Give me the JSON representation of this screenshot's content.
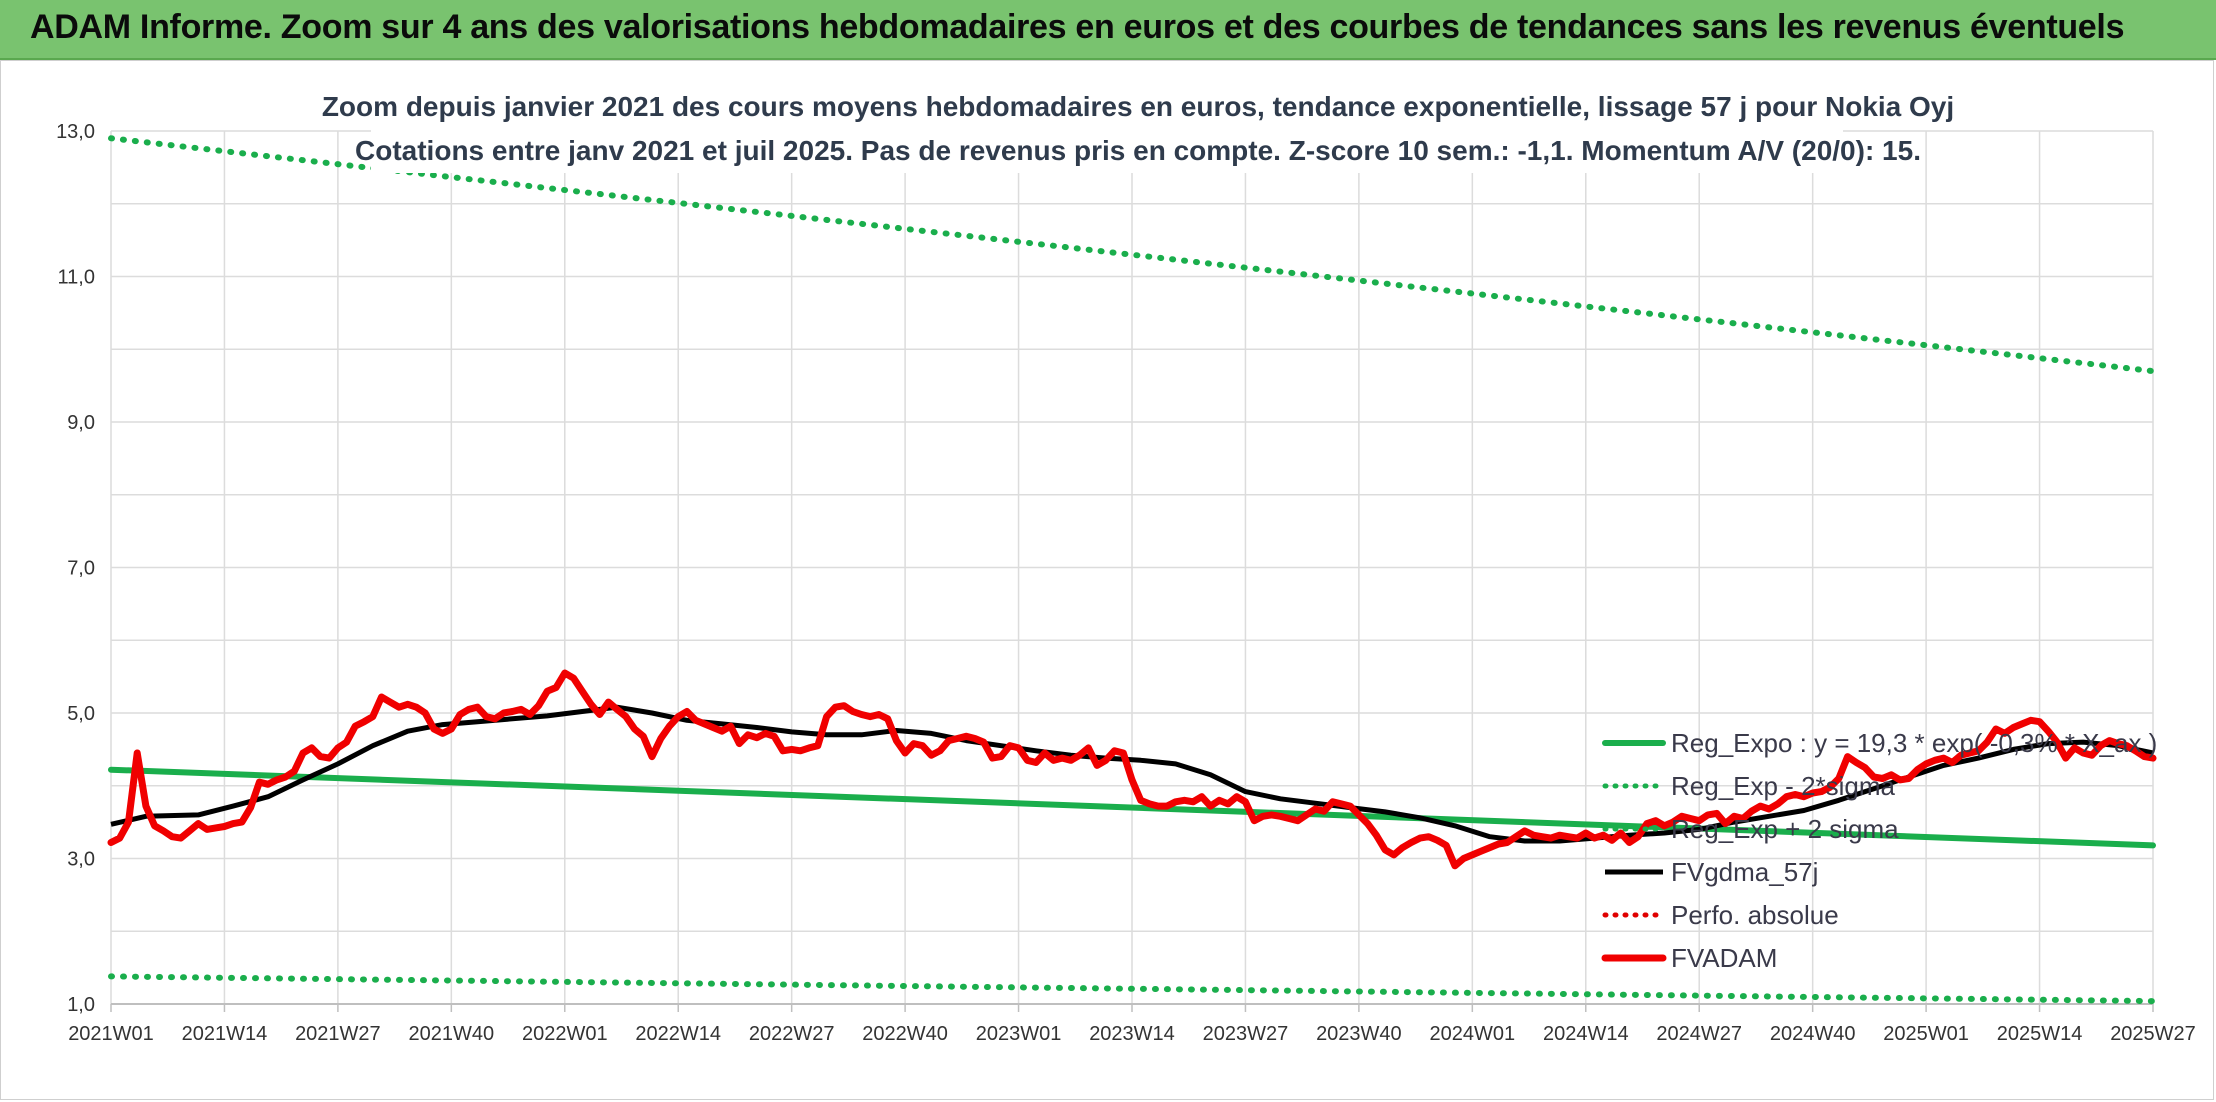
{
  "banner": {
    "title": "ADAM Informe. Zoom sur 4 ans des valorisations hebdomadaires en euros et des courbes de tendances sans les revenus éventuels"
  },
  "chart_data": {
    "type": "line",
    "title": "Zoom depuis janvier 2021 des cours moyens hebdomadaires en euros, tendance exponentielle, lissage 57 j pour Nokia Oyj",
    "subtitle": "Cotations entre janv 2021 et juil 2025. Pas de revenus pris en compte. Z-score 10 sem.: -1,1. Momentum A/V (20/0): 15.",
    "xlabel": "",
    "ylabel": "",
    "ylim": [
      1,
      13
    ],
    "y_ticks": [
      "1,0",
      "3,0",
      "5,0",
      "7,0",
      "9,0",
      "11,0",
      "13,0"
    ],
    "x_ticks": [
      "2021W01",
      "2021W14",
      "2021W27",
      "2021W40",
      "2022W01",
      "2022W14",
      "2022W27",
      "2022W40",
      "2023W01",
      "2023W14",
      "2023W27",
      "2023W40",
      "2024W01",
      "2024W14",
      "2024W27",
      "2024W40",
      "2025W01",
      "2025W14",
      "2025W27"
    ],
    "x_unit": "week index from 2021W01",
    "grid": true,
    "legend_position": "bottom-right, inside plot",
    "series": [
      {
        "name": "Reg_Expo : y = 19,3 * exp( -0,3% * X_ax )",
        "style": "solid",
        "color": "#1aae4c",
        "x": [
          0,
          234
        ],
        "y": [
          4.22,
          3.18
        ]
      },
      {
        "name": "Reg_Exp - 2*sigma",
        "style": "dotted",
        "color": "#1aae4c",
        "x": [
          0,
          234
        ],
        "y": [
          1.38,
          1.04
        ]
      },
      {
        "name": "Reg_Exp + 2 sigma",
        "style": "dotted",
        "color": "#1aae4c",
        "x": [
          0,
          234
        ],
        "y": [
          12.9,
          9.7
        ]
      },
      {
        "name": "FVgdma_57j",
        "style": "solid",
        "color": "#000000",
        "x": [
          0,
          4,
          10,
          14,
          18,
          22,
          26,
          30,
          34,
          38,
          42,
          46,
          50,
          54,
          58,
          62,
          66,
          70,
          74,
          78,
          82,
          86,
          90,
          94,
          98,
          102,
          106,
          110,
          114,
          118,
          122,
          126,
          130,
          134,
          138,
          142,
          146,
          150,
          154,
          158,
          162,
          166,
          170,
          174,
          178,
          182,
          186,
          190,
          194,
          198,
          202,
          206,
          210,
          214,
          218,
          222,
          226,
          230,
          234
        ],
        "y": [
          3.47,
          3.58,
          3.6,
          3.72,
          3.85,
          4.08,
          4.3,
          4.55,
          4.75,
          4.84,
          4.88,
          4.92,
          4.96,
          5.02,
          5.08,
          5.0,
          4.9,
          4.85,
          4.8,
          4.74,
          4.7,
          4.7,
          4.76,
          4.72,
          4.62,
          4.55,
          4.48,
          4.42,
          4.38,
          4.35,
          4.3,
          4.15,
          3.92,
          3.82,
          3.76,
          3.7,
          3.64,
          3.56,
          3.45,
          3.3,
          3.24,
          3.24,
          3.28,
          3.32,
          3.35,
          3.4,
          3.5,
          3.58,
          3.66,
          3.8,
          3.96,
          4.12,
          4.28,
          4.38,
          4.5,
          4.58,
          4.6,
          4.55,
          4.45
        ]
      },
      {
        "name": "Perfo. absolue",
        "style": "dotted",
        "color": "#e00000",
        "x": [],
        "y": []
      },
      {
        "name": "FVADAM",
        "style": "solid",
        "color": "#f00000",
        "x": [
          0,
          1,
          2,
          3,
          4,
          5,
          6,
          7,
          8,
          9,
          10,
          11,
          12,
          13,
          14,
          15,
          16,
          17,
          18,
          19,
          20,
          21,
          22,
          23,
          24,
          25,
          26,
          27,
          28,
          29,
          30,
          31,
          32,
          33,
          34,
          35,
          36,
          37,
          38,
          39,
          40,
          41,
          42,
          43,
          44,
          45,
          46,
          47,
          48,
          49,
          50,
          51,
          52,
          53,
          54,
          55,
          56,
          57,
          58,
          59,
          60,
          61,
          62,
          63,
          64,
          65,
          66,
          67,
          68,
          69,
          70,
          71,
          72,
          73,
          74,
          75,
          76,
          77,
          78,
          79,
          80,
          81,
          82,
          83,
          84,
          85,
          86,
          87,
          88,
          89,
          90,
          91,
          92,
          93,
          94,
          95,
          96,
          97,
          98,
          99,
          100,
          101,
          102,
          103,
          104,
          105,
          106,
          107,
          108,
          109,
          110,
          111,
          112,
          113,
          114,
          115,
          116,
          117,
          118,
          119,
          120,
          121,
          122,
          123,
          124,
          125,
          126,
          127,
          128,
          129,
          130,
          131,
          132,
          133,
          134,
          135,
          136,
          137,
          138,
          139,
          140,
          141,
          142,
          143,
          144,
          145,
          146,
          147,
          148,
          149,
          150,
          151,
          152,
          153,
          154,
          155,
          156,
          157,
          158,
          159,
          160,
          161,
          162,
          163,
          164,
          165,
          166,
          167,
          168,
          169,
          170,
          171,
          172,
          173,
          174,
          175,
          176,
          177,
          178,
          179,
          180,
          181,
          182,
          183,
          184,
          185,
          186,
          187,
          188,
          189,
          190,
          191,
          192,
          193,
          194,
          195,
          196,
          197,
          198,
          199,
          200,
          201,
          202,
          203,
          204,
          205,
          206,
          207,
          208,
          209,
          210,
          211,
          212,
          213,
          214,
          215,
          216,
          217,
          218,
          219,
          220,
          221,
          222,
          223,
          224,
          225,
          226,
          227,
          228,
          229,
          230,
          231,
          232,
          233,
          234
        ],
        "y": [
          3.22,
          3.28,
          3.5,
          4.45,
          3.72,
          3.45,
          3.38,
          3.3,
          3.28,
          3.38,
          3.48,
          3.4,
          3.42,
          3.44,
          3.48,
          3.5,
          3.7,
          4.05,
          4.02,
          4.08,
          4.12,
          4.2,
          4.45,
          4.52,
          4.4,
          4.38,
          4.52,
          4.6,
          4.82,
          4.88,
          4.95,
          5.22,
          5.15,
          5.08,
          5.12,
          5.08,
          5.0,
          4.78,
          4.72,
          4.78,
          4.98,
          5.05,
          5.08,
          4.95,
          4.92,
          5.0,
          5.02,
          5.05,
          4.98,
          5.1,
          5.3,
          5.35,
          5.55,
          5.48,
          5.3,
          5.12,
          4.98,
          5.15,
          5.05,
          4.95,
          4.78,
          4.68,
          4.4,
          4.65,
          4.82,
          4.95,
          5.02,
          4.9,
          4.85,
          4.8,
          4.75,
          4.82,
          4.58,
          4.7,
          4.66,
          4.72,
          4.68,
          4.48,
          4.5,
          4.48,
          4.52,
          4.55,
          4.95,
          5.08,
          5.1,
          5.02,
          4.98,
          4.95,
          4.98,
          4.92,
          4.62,
          4.45,
          4.58,
          4.55,
          4.42,
          4.48,
          4.62,
          4.65,
          4.68,
          4.65,
          4.6,
          4.38,
          4.4,
          4.55,
          4.52,
          4.35,
          4.32,
          4.45,
          4.35,
          4.38,
          4.35,
          4.42,
          4.52,
          4.28,
          4.35,
          4.48,
          4.45,
          4.08,
          3.8,
          3.75,
          3.72,
          3.72,
          3.78,
          3.8,
          3.78,
          3.85,
          3.72,
          3.8,
          3.75,
          3.85,
          3.78,
          3.52,
          3.58,
          3.6,
          3.58,
          3.55,
          3.52,
          3.6,
          3.68,
          3.65,
          3.78,
          3.75,
          3.72,
          3.6,
          3.48,
          3.32,
          3.12,
          3.05,
          3.15,
          3.22,
          3.28,
          3.3,
          3.25,
          3.18,
          2.9,
          3.0,
          3.05,
          3.1,
          3.15,
          3.2,
          3.22,
          3.3,
          3.38,
          3.32,
          3.3,
          3.28,
          3.32,
          3.3,
          3.28,
          3.35,
          3.28,
          3.32,
          3.25,
          3.35,
          3.22,
          3.3,
          3.48,
          3.52,
          3.45,
          3.5,
          3.58,
          3.55,
          3.52,
          3.6,
          3.62,
          3.48,
          3.58,
          3.55,
          3.65,
          3.72,
          3.68,
          3.75,
          3.85,
          3.88,
          3.85,
          3.9,
          3.92,
          3.98,
          4.1,
          4.4,
          4.32,
          4.25,
          4.12,
          4.1,
          4.15,
          4.08,
          4.1,
          4.22,
          4.3,
          4.35,
          4.38,
          4.32,
          4.42,
          4.45,
          4.48,
          4.6,
          4.78,
          4.72,
          4.8,
          4.85,
          4.9,
          4.88,
          4.75,
          4.6,
          4.38,
          4.52,
          4.45,
          4.42,
          4.55,
          4.62,
          4.58,
          4.55,
          4.48,
          4.4,
          4.38
        ]
      }
    ]
  },
  "colors": {
    "banner_bg": "#79c36f",
    "trend_green": "#1aae4c",
    "fvadam_red": "#f00000",
    "ma_black": "#000000",
    "grid": "#d9d9d9"
  }
}
